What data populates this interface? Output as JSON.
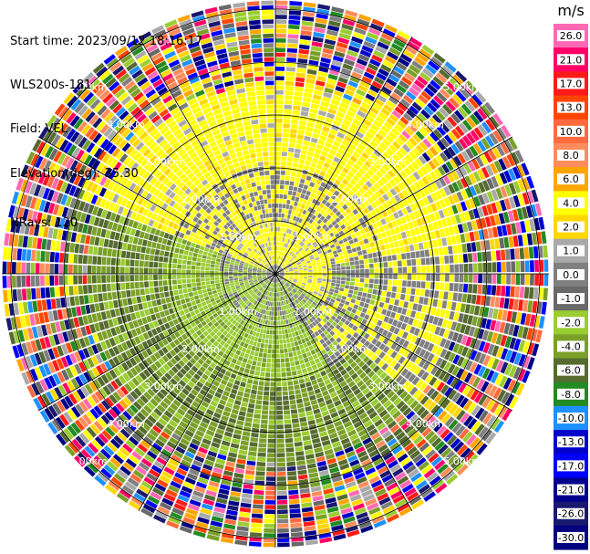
{
  "header": {
    "start_time": "Start time: 2023/09/12 18:16:17",
    "instrument": "WLS200s-181",
    "field": "Field: VEL",
    "elevation": "Elevation(deg): 35.30",
    "nrays": "NRays: 120"
  },
  "chart_data": {
    "type": "heatmap",
    "projection": "polar-ppi",
    "field": "VEL",
    "nrays": 120,
    "range_ring_labels": [
      "1.00km",
      "2.00km",
      "3.00km",
      "4.00km",
      "5.00km"
    ],
    "colorbar": {
      "unit": "m/s",
      "ticks": [
        "26.0",
        "21.0",
        "17.0",
        "13.0",
        "10.0",
        "8.0",
        "6.0",
        "4.0",
        "2.0",
        "1.0",
        "0.0",
        "-1.0",
        "-2.0",
        "-4.0",
        "-6.0",
        "-8.0",
        "-10.0",
        "-13.0",
        "-17.0",
        "-21.0",
        "-26.0",
        "-30.0"
      ],
      "colors": [
        "#ff69b4",
        "#ff0066",
        "#ff1a1a",
        "#ff4500",
        "#ff6a3d",
        "#ff8c5a",
        "#ffa500",
        "#ffff00",
        "#ffd700",
        "#a9a9a9",
        "#808080",
        "#696969",
        "#9acd32",
        "#7aa02a",
        "#556b2f",
        "#228b22",
        "#1e90ff",
        "#0000cd",
        "#0000ff",
        "#00008b",
        "#191970",
        "#000080"
      ]
    }
  }
}
